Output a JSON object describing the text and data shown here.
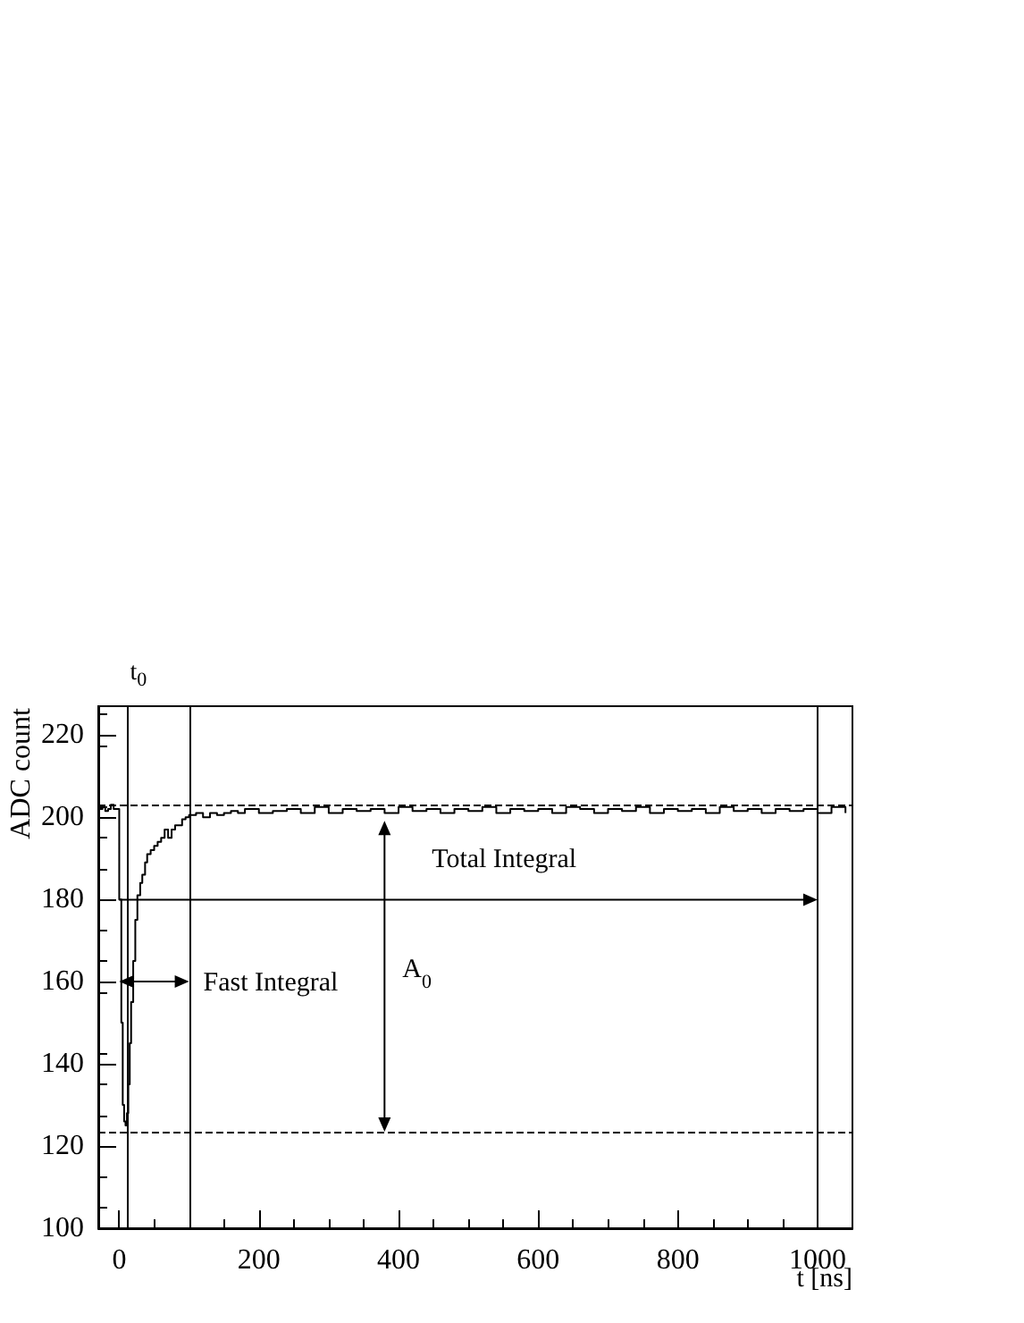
{
  "chart_data": {
    "type": "step",
    "xlabel": "t [ns]",
    "ylabel": "ADC count",
    "xlim": [
      -30,
      1050
    ],
    "ylim": [
      100,
      227
    ],
    "xticks": [
      0,
      200,
      400,
      600,
      800,
      1000
    ],
    "yticks": [
      100,
      120,
      140,
      160,
      180,
      200,
      220
    ],
    "grid": false,
    "marker": "none",
    "line_style": "solid",
    "x": [
      -28,
      -24,
      -20,
      -16,
      -12,
      -8,
      -4,
      0,
      3,
      5,
      7,
      9,
      11,
      13,
      15,
      17,
      20,
      23,
      26,
      30,
      33,
      37,
      40,
      45,
      50,
      55,
      60,
      65,
      70,
      75,
      80,
      85,
      90,
      95,
      100,
      110,
      120,
      130,
      140,
      150,
      160,
      170,
      180,
      200,
      220,
      240,
      260,
      280,
      300,
      320,
      340,
      360,
      380,
      400,
      420,
      440,
      460,
      480,
      500,
      520,
      540,
      560,
      580,
      600,
      620,
      640,
      660,
      680,
      700,
      720,
      740,
      760,
      780,
      800,
      820,
      840,
      860,
      880,
      900,
      920,
      940,
      960,
      980,
      1000,
      1020,
      1040
    ],
    "series": [
      {
        "color": "#000000",
        "values": [
          202,
          202.5,
          201.5,
          202,
          203,
          202,
          202,
          180,
          150,
          130,
          126,
          125,
          128,
          135,
          145,
          155,
          165,
          175,
          181,
          184,
          186,
          189,
          191,
          192,
          193,
          194,
          195,
          197,
          195,
          197,
          198,
          198,
          199.5,
          200,
          200.5,
          201,
          200,
          201,
          200.5,
          201,
          201.5,
          201,
          202,
          201,
          201.5,
          202,
          201,
          202.5,
          201,
          202,
          201.5,
          202,
          201,
          202.5,
          201.5,
          202,
          201,
          202,
          201.5,
          202.5,
          201,
          202,
          201.5,
          202,
          201,
          202.5,
          202,
          201,
          202,
          201.5,
          202.5,
          201,
          202,
          201.5,
          202,
          201,
          202.5,
          201.5,
          202,
          201,
          202,
          201.5,
          202,
          201,
          202.5,
          201
        ]
      }
    ],
    "ref_lines": [
      {
        "axis": "x",
        "value": 12,
        "label": "t$_{0}$"
      },
      {
        "axis": "x",
        "value": 100
      },
      {
        "axis": "x",
        "value": 1000
      },
      {
        "axis": "y",
        "value": 203,
        "line_style": "dashed"
      },
      {
        "axis": "y",
        "value": 123.5,
        "line_style": "dashed"
      }
    ],
    "annotations": [
      "Total Integral",
      {
        "text": "Fast Integral",
        "x": 100,
        "y": 160
      },
      "A$_{0}$"
    ]
  }
}
